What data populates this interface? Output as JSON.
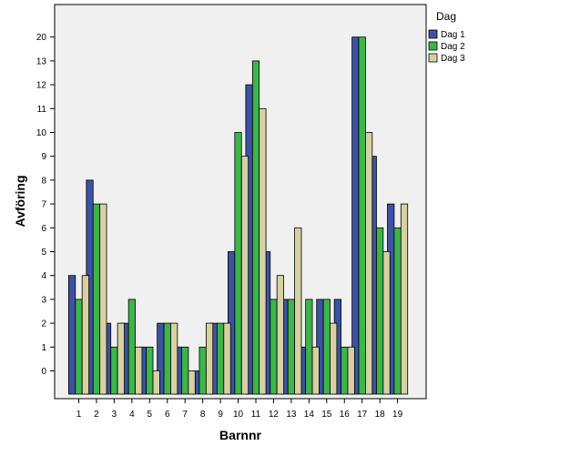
{
  "chart_data": {
    "type": "bar",
    "xlabel": "Barnnr",
    "ylabel": "Avföring",
    "grid": false,
    "legend_position": "top-right",
    "legend_title": "Dag",
    "categories": [
      "1",
      "2",
      "3",
      "4",
      "5",
      "6",
      "7",
      "8",
      "9",
      "10",
      "11",
      "12",
      "13",
      "14",
      "15",
      "16",
      "17",
      "18",
      "19"
    ],
    "y_ticks": [
      "0",
      "1",
      "2",
      "3",
      "4",
      "5",
      "6",
      "7",
      "8",
      "9",
      "10",
      "11",
      "12",
      "13",
      "20"
    ],
    "series": [
      {
        "name": "Dag 1",
        "color": "#3d52a1",
        "values": [
          4,
          8,
          2,
          2,
          1,
          2,
          1,
          0,
          2,
          5,
          12,
          5,
          3,
          1,
          3,
          3,
          20,
          9,
          7
        ]
      },
      {
        "name": "Dag 2",
        "color": "#3cb54a",
        "values": [
          3,
          7,
          1,
          3,
          1,
          2,
          1,
          1,
          2,
          10,
          13,
          3,
          3,
          3,
          3,
          1,
          20,
          6,
          6
        ]
      },
      {
        "name": "Dag 3",
        "color": "#d6d1a3",
        "values": [
          4,
          7,
          2,
          1,
          0,
          2,
          0,
          2,
          2,
          9,
          11,
          4,
          6,
          1,
          2,
          1,
          10,
          5,
          7
        ]
      }
    ]
  }
}
